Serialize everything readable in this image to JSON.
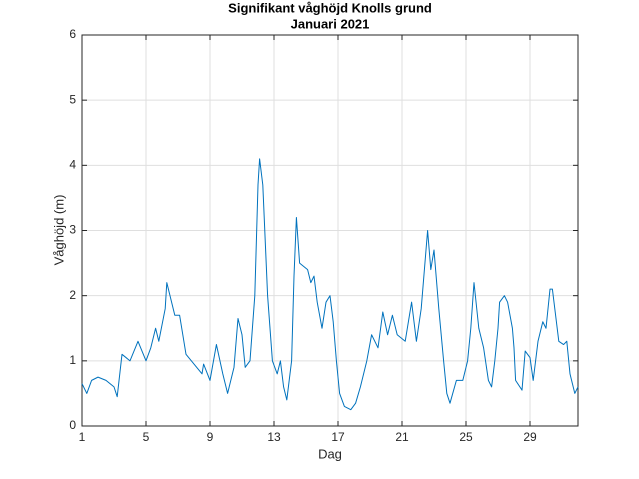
{
  "chart_data": {
    "type": "line",
    "title": "Signifikant våghöjd Knolls grund",
    "subtitle": "Januari 2021",
    "x_label": "Dag",
    "y_label": "Våghöjd (m)",
    "xlim": [
      1,
      32
    ],
    "xticks": [
      1,
      5,
      9,
      13,
      17,
      21,
      25,
      29
    ],
    "ylim": [
      0,
      6
    ],
    "yticks": [
      0,
      1,
      2,
      3,
      4,
      5,
      6
    ],
    "grid": true,
    "x": [
      1,
      1.3,
      1.6,
      2,
      2.5,
      3,
      3.2,
      3.5,
      4,
      4.5,
      5,
      5.3,
      5.6,
      5.8,
      6.2,
      6.3,
      6.8,
      7.1,
      7.5,
      8,
      8.5,
      8.6,
      9,
      9.4,
      9.8,
      10.1,
      10.5,
      10.75,
      11,
      11.2,
      11.5,
      11.8,
      12,
      12.1,
      12.3,
      12.6,
      12.9,
      13.2,
      13.4,
      13.6,
      13.8,
      14.1,
      14.25,
      14.4,
      14.6,
      15.1,
      15.3,
      15.5,
      15.7,
      16,
      16.25,
      16.5,
      16.7,
      16.9,
      17.1,
      17.4,
      17.8,
      18.1,
      18.4,
      18.8,
      19.1,
      19.5,
      19.8,
      20.1,
      20.4,
      20.7,
      21.2,
      21.4,
      21.6,
      21.9,
      22.2,
      22.6,
      22.8,
      23.0,
      23.3,
      23.6,
      23.8,
      24,
      24.4,
      24.8,
      25.1,
      25.3,
      25.5,
      25.8,
      26.1,
      26.4,
      26.6,
      26.8,
      27.0,
      27.1,
      27.4,
      27.6,
      27.9,
      28.0,
      28.1,
      28.5,
      28.7,
      29.0,
      29.2,
      29.5,
      29.8,
      30.0,
      30.25,
      30.4,
      30.8,
      31.1,
      31.3,
      31.5,
      31.8,
      32
    ],
    "series": [
      {
        "name": "Våghöjd",
        "color": "#0072bd",
        "values": [
          0.65,
          0.5,
          0.7,
          0.75,
          0.7,
          0.6,
          0.45,
          1.1,
          1.0,
          1.3,
          1.0,
          1.2,
          1.5,
          1.3,
          1.8,
          2.2,
          1.7,
          1.7,
          1.1,
          0.95,
          0.8,
          0.95,
          0.7,
          1.25,
          0.8,
          0.5,
          0.9,
          1.65,
          1.4,
          0.9,
          1.0,
          2.0,
          3.7,
          4.1,
          3.7,
          2.0,
          1.0,
          0.8,
          1.0,
          0.6,
          0.4,
          1.0,
          2.3,
          3.2,
          2.5,
          2.4,
          2.2,
          2.3,
          1.9,
          1.5,
          1.9,
          2.0,
          1.6,
          1.0,
          0.5,
          0.3,
          0.25,
          0.35,
          0.6,
          1.0,
          1.4,
          1.2,
          1.75,
          1.4,
          1.7,
          1.4,
          1.3,
          1.6,
          1.9,
          1.3,
          1.8,
          3.0,
          2.4,
          2.7,
          1.8,
          1.0,
          0.5,
          0.35,
          0.7,
          0.7,
          1.0,
          1.5,
          2.2,
          1.5,
          1.2,
          0.7,
          0.6,
          1.0,
          1.5,
          1.9,
          2.0,
          1.9,
          1.5,
          1.2,
          0.7,
          0.55,
          1.15,
          1.05,
          0.7,
          1.3,
          1.6,
          1.5,
          2.1,
          2.1,
          1.3,
          1.25,
          1.3,
          0.8,
          0.5,
          0.6
        ]
      }
    ]
  }
}
